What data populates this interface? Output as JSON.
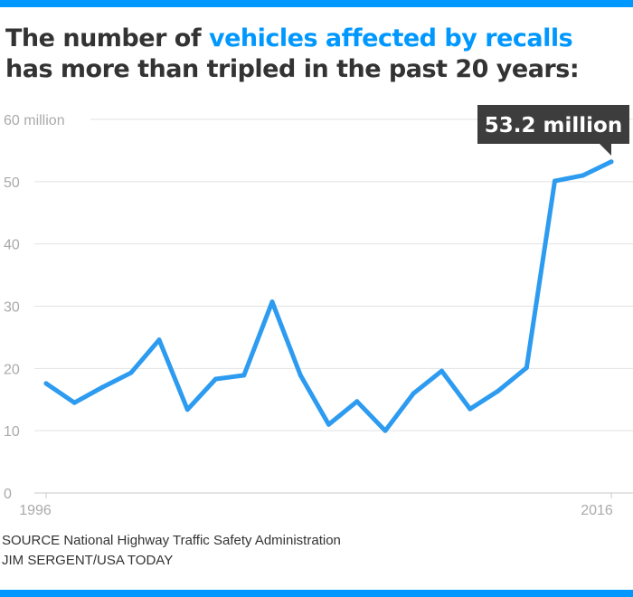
{
  "title": {
    "part1": "The number of ",
    "highlight": "vehicles affected by recalls",
    "line2": "has more than tripled in the past 20 years:"
  },
  "colors": {
    "accent": "#0098fe",
    "line": "#2c9bf0",
    "text": "#333333",
    "callout_bg": "#3d3d3d"
  },
  "chart_data": {
    "type": "line",
    "x": [
      1996,
      1997,
      1998,
      1999,
      2000,
      2001,
      2002,
      2003,
      2004,
      2005,
      2006,
      2007,
      2008,
      2009,
      2010,
      2011,
      2012,
      2013,
      2014,
      2015,
      2016
    ],
    "values": [
      17.6,
      14.5,
      17.0,
      19.3,
      24.6,
      13.4,
      18.3,
      18.9,
      30.7,
      18.9,
      11.0,
      14.7,
      10.0,
      16.0,
      19.6,
      13.5,
      16.4,
      20.1,
      50.1,
      51.0,
      53.2
    ],
    "ylim": [
      0,
      60
    ],
    "yticks": [
      0,
      10,
      20,
      30,
      40,
      50,
      60
    ],
    "ytick_labels": [
      "0",
      "10",
      "20",
      "30",
      "40",
      "50",
      "60 million"
    ],
    "xtick_labels": [
      "1996",
      "2016"
    ],
    "grid": true,
    "annotation": "53.2 million"
  },
  "footer": {
    "source": "SOURCE National Highway Traffic Safety Administration",
    "credit": "JIM SERGENT/USA TODAY"
  }
}
